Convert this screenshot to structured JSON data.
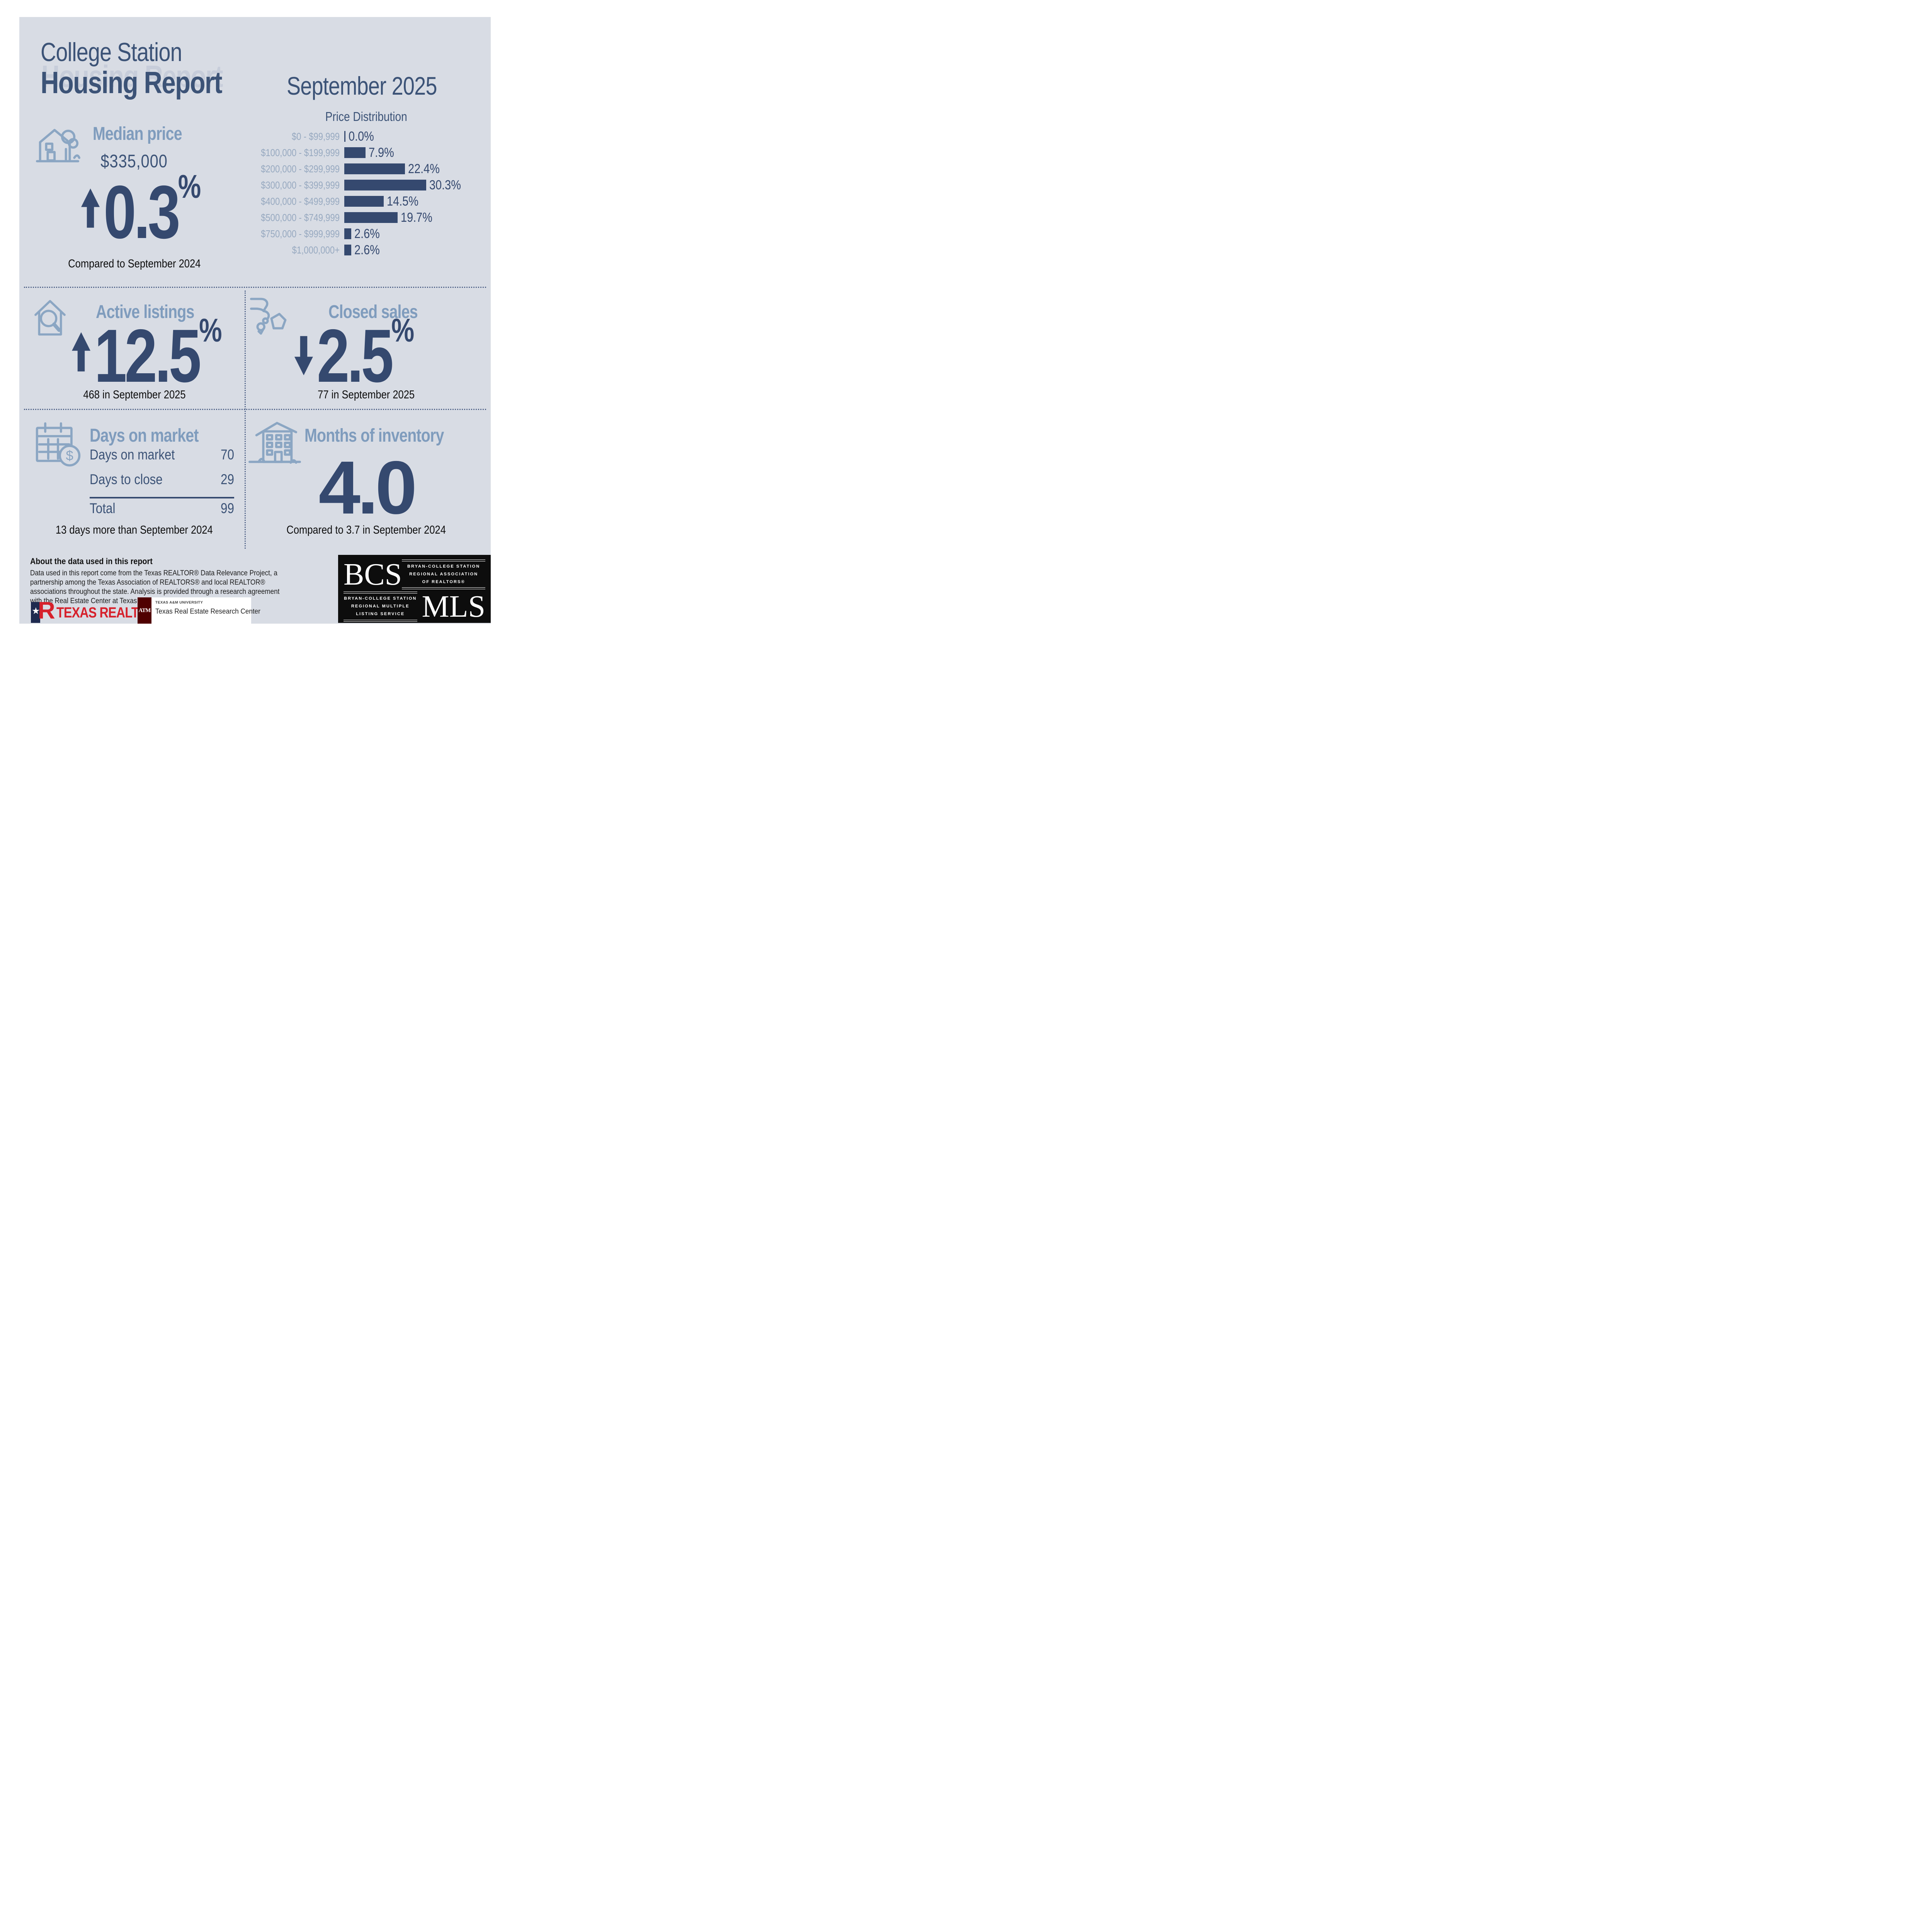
{
  "header": {
    "title_line1": "College Station",
    "title_line2": "Housing Report",
    "period": "September 2025"
  },
  "colors": {
    "navy": "#35496f",
    "heading_navy": "#3c5377",
    "light_blue": "#7f9cbd",
    "icon_blue": "#8ba6c3",
    "panel_bg": "#d8dce4",
    "label_blue": "#97a9c0",
    "black": "#0d0d0d",
    "tr_red": "#d6212c",
    "tr_navy": "#1e2a4f",
    "am_maroon": "#500000",
    "bcs_bg": "#0d0d0d"
  },
  "chart_data": {
    "type": "bar",
    "orientation": "horizontal",
    "title": "Price Distribution",
    "categories": [
      "$0 - $99,999",
      "$100,000 - $199,999",
      "$200,000 - $299,999",
      "$300,000 - $399,999",
      "$400,000 - $499,999",
      "$500,000 - $749,999",
      "$750,000 - $999,999",
      "$1,000,000+"
    ],
    "values": [
      0.0,
      7.9,
      22.4,
      30.3,
      14.5,
      19.7,
      2.6,
      2.6
    ],
    "value_labels": [
      "0.0%",
      "7.9%",
      "22.4%",
      "30.3%",
      "14.5%",
      "19.7%",
      "2.6%",
      "2.6%"
    ],
    "xlim": [
      0,
      32
    ],
    "grid": false,
    "legend": "none",
    "bar_color": "#35496f"
  },
  "median_price": {
    "heading": "Median price",
    "value": "$335,000",
    "change": "0.3",
    "percent_sign": "%",
    "direction": "up",
    "caption": "Compared to September 2024"
  },
  "active_listings": {
    "heading": "Active listings",
    "change": "12.5",
    "percent_sign": "%",
    "direction": "up",
    "caption": "468 in September 2025"
  },
  "closed_sales": {
    "heading": "Closed sales",
    "change": "2.5",
    "percent_sign": "%",
    "direction": "down",
    "caption": "77 in September 2025"
  },
  "days_on_market": {
    "heading": "Days on market",
    "rows": [
      {
        "label": "Days on market",
        "value": "70"
      },
      {
        "label": "Days to close",
        "value": "29"
      }
    ],
    "total_label": "Total",
    "total_value": "99",
    "caption": "13 days more than September 2024"
  },
  "months_of_inventory": {
    "heading": "Months of inventory",
    "value": "4.0",
    "caption": "Compared to 3.7 in September 2024"
  },
  "footer": {
    "about_title": "About the data used in this report",
    "about_lines": [
      "Data used in this report come from the Texas REALTOR® Data Relevance Project, a",
      "partnership among the Texas Association of REALTORS® and local REALTOR®",
      "associations throughout the state. Analysis is provided through a research agreement",
      "with the Real Estate Center at Texas A&M University."
    ],
    "texas_realtors": {
      "label": "TEXAS REALTORS",
      "registered": "®",
      "star": "★",
      "r_letter": "R"
    },
    "tamu": {
      "logo": "ATM",
      "university": "TEXAS A&M UNIVERSITY",
      "center": "Texas Real Estate Research Center"
    },
    "bcs_mls": {
      "acronym_top": "BCS",
      "assoc_lines": [
        "BRYAN-COLLEGE STATION",
        "REGIONAL ASSOCIATION",
        "OF REALTORS®"
      ],
      "mls_lines": [
        "BRYAN-COLLEGE STATION",
        "REGIONAL MULTIPLE",
        "LISTING SERVICE"
      ],
      "acronym_bottom": "MLS"
    }
  }
}
